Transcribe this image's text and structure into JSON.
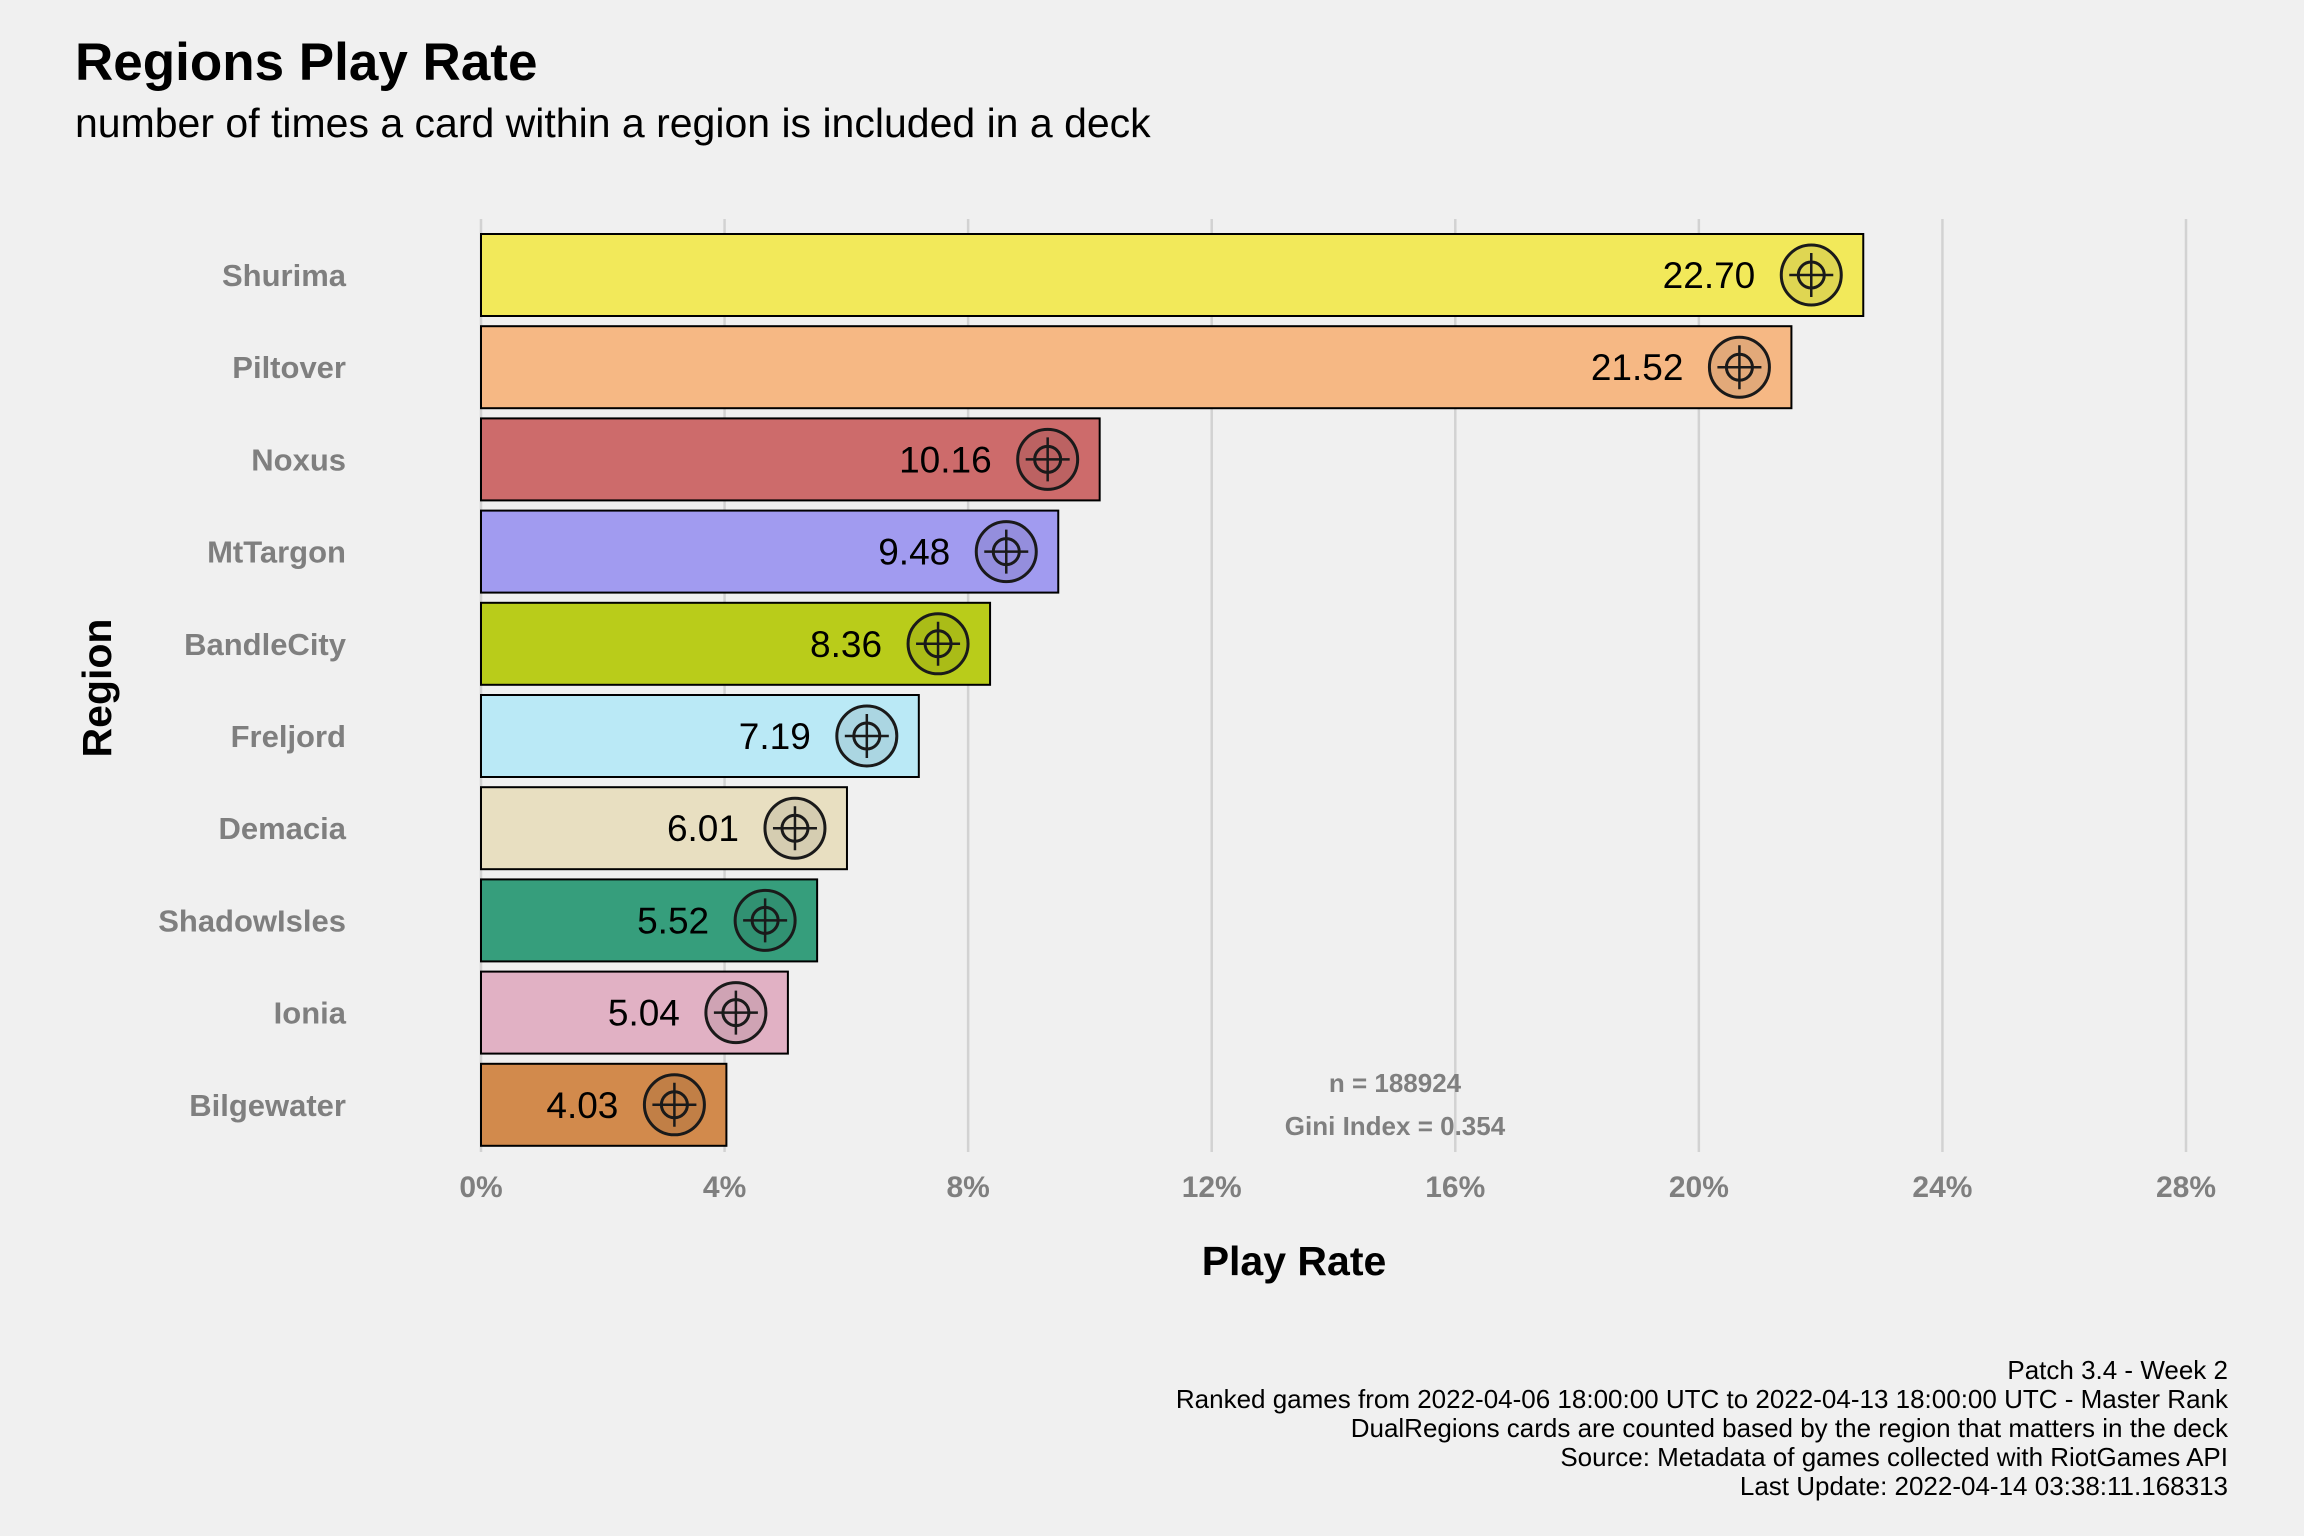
{
  "chart_data": {
    "type": "bar",
    "orientation": "horizontal",
    "title": "Regions Play Rate",
    "subtitle": "number of times a card within a region is included in a deck",
    "xlabel": "Play Rate",
    "ylabel": "Region",
    "xlim": [
      0,
      28
    ],
    "xticks": [
      0,
      4,
      8,
      12,
      16,
      20,
      24,
      28
    ],
    "xtick_labels": [
      "0%",
      "4%",
      "8%",
      "12%",
      "16%",
      "20%",
      "24%",
      "28%"
    ],
    "grid": "vertical-major",
    "legend": "none",
    "categories": [
      "Shurima",
      "Piltover",
      "Noxus",
      "MtTargon",
      "BandleCity",
      "Freljord",
      "Demacia",
      "ShadowIsles",
      "Ionia",
      "Bilgewater"
    ],
    "values": [
      22.7,
      21.52,
      10.16,
      9.48,
      8.36,
      7.19,
      6.01,
      5.52,
      5.04,
      4.03
    ],
    "value_labels": [
      "22.70",
      "21.52",
      "10.16",
      "9.48",
      "8.36",
      "7.19",
      "6.01",
      "5.52",
      "5.04",
      "4.03"
    ],
    "colors": [
      "#f2e95a",
      "#f6b884",
      "#cd6b6b",
      "#a19bf0",
      "#b9cc1a",
      "#bae9f6",
      "#e8dfc1",
      "#369e7c",
      "#e1b1c4",
      "#d28a4c"
    ],
    "icons": [
      "shurima-emblem-icon",
      "piltover-emblem-icon",
      "noxus-emblem-icon",
      "mttargon-emblem-icon",
      "bandlecity-emblem-icon",
      "freljord-emblem-icon",
      "demacia-emblem-icon",
      "shadowisles-emblem-icon",
      "ionia-emblem-icon",
      "bilgewater-emblem-icon"
    ],
    "annotations": [
      "n = 188924",
      "Gini Index = 0.354"
    ]
  },
  "footer": {
    "lines": [
      "Patch 3.4 - Week 2",
      "Ranked games from 2022-04-06 18:00:00 UTC to 2022-04-13 18:00:00 UTC - Master Rank",
      "DualRegions cards are counted based by the region that matters in the deck",
      "Source: Metadata of games collected with RiotGames API",
      "Last Update: 2022-04-14 03:38:11.168313"
    ]
  }
}
